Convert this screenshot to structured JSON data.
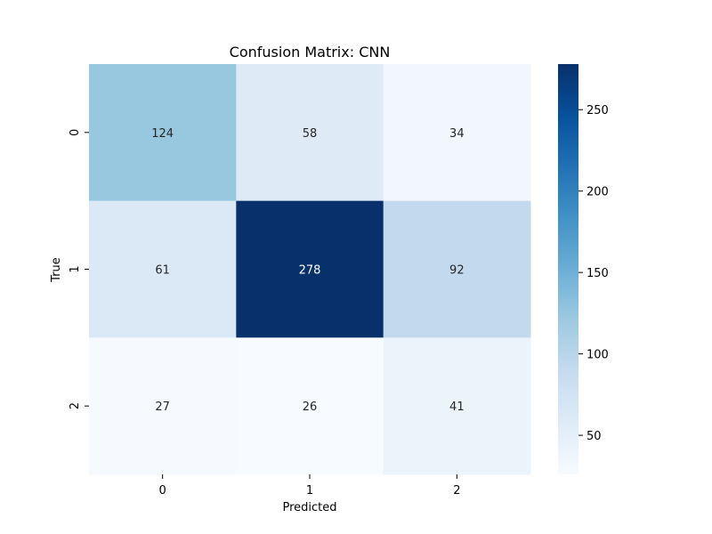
{
  "chart_data": {
    "type": "heatmap",
    "title": "Confusion Matrix: CNN",
    "xlabel": "Predicted",
    "ylabel": "True",
    "x_categories": [
      "0",
      "1",
      "2"
    ],
    "y_categories": [
      "0",
      "1",
      "2"
    ],
    "values": [
      [
        124,
        58,
        34
      ],
      [
        61,
        278,
        92
      ],
      [
        27,
        26,
        41
      ]
    ],
    "colormap": "Blues",
    "color_range": [
      26,
      278
    ],
    "colorbar_ticks": [
      50,
      100,
      150,
      200,
      250
    ]
  }
}
